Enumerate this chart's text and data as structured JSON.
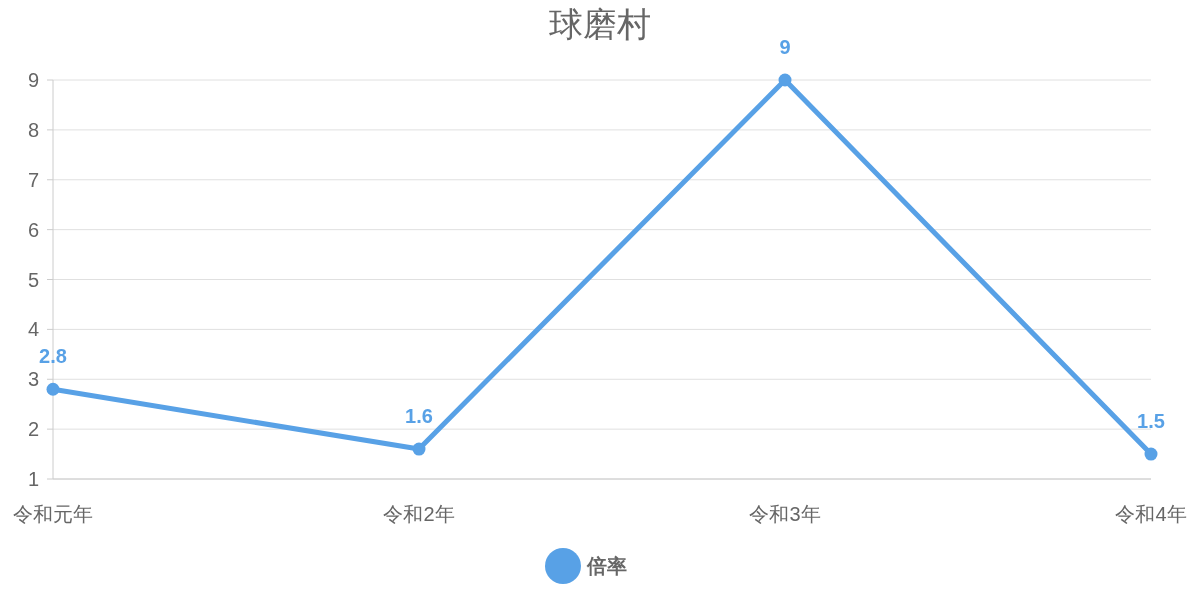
{
  "chart_data": {
    "type": "line",
    "title": "球磨村",
    "categories": [
      "令和元年",
      "令和2年",
      "令和3年",
      "令和4年"
    ],
    "series": [
      {
        "name": "倍率",
        "color": "#58a1e6",
        "values": [
          2.8,
          1.6,
          9,
          1.5
        ]
      }
    ],
    "ylim": [
      1,
      9
    ],
    "yticks": [
      1,
      2,
      3,
      4,
      5,
      6,
      7,
      8,
      9
    ],
    "grid": "y",
    "legend": "bottom",
    "data_labels": true,
    "marker": "circle"
  }
}
